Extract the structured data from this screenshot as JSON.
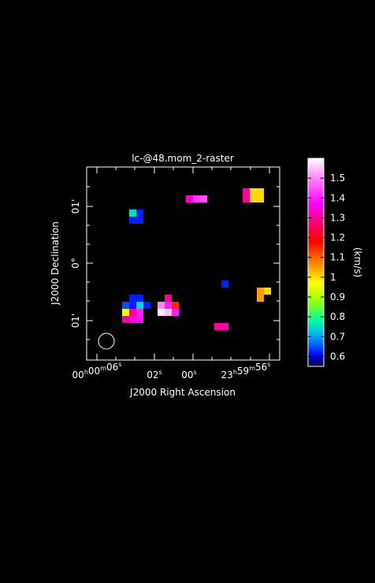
{
  "chart_data": {
    "type": "heatmap",
    "title": "lc-@48.mom_2-raster",
    "xlabel": "J2000 Right Ascension",
    "ylabel": "J2000 Declination",
    "x_ticks": [
      {
        "label": "00h00m06s",
        "parts": [
          [
            "00",
            "h"
          ],
          [
            "00",
            "m"
          ],
          [
            "06",
            "s"
          ]
        ]
      },
      {
        "label": "02s",
        "parts": [
          [
            "02",
            "s"
          ]
        ]
      },
      {
        "label": "00s",
        "parts": [
          [
            "00",
            "s"
          ]
        ]
      },
      {
        "label": "23h59m56s",
        "parts": [
          [
            "23",
            "h"
          ],
          [
            "59",
            "m"
          ],
          [
            "56",
            "s"
          ]
        ]
      }
    ],
    "y_ticks": [
      "01'",
      "0°",
      "01'"
    ],
    "colorbar": {
      "label": "(km/s)",
      "range": [
        0.55,
        1.6
      ],
      "ticks": [
        "1.5",
        "1.4",
        "1.3",
        "1.2",
        "1.1",
        "1",
        "0.9",
        "0.8",
        "0.7",
        "0.6"
      ]
    },
    "beam": "ellipse",
    "pixels": [
      {
        "gx": 6,
        "gy": 6,
        "value": 0.75
      },
      {
        "gx": 7,
        "gy": 6,
        "value": 0.62
      },
      {
        "gx": 6,
        "gy": 7,
        "value": 0.62
      },
      {
        "gx": 7,
        "gy": 7,
        "value": 0.62
      },
      {
        "gx": 14,
        "gy": 4,
        "value": 1.33
      },
      {
        "gx": 15,
        "gy": 4,
        "value": 1.42
      },
      {
        "gx": 16,
        "gy": 4,
        "value": 1.45
      },
      {
        "gx": 22,
        "gy": 3,
        "value": 1.3
      },
      {
        "gx": 23,
        "gy": 3,
        "value": 1.0
      },
      {
        "gx": 24,
        "gy": 3,
        "value": 1.0
      },
      {
        "gx": 22,
        "gy": 4,
        "value": 1.3
      },
      {
        "gx": 23,
        "gy": 4,
        "value": 1.0
      },
      {
        "gx": 24,
        "gy": 4,
        "value": 1.0
      },
      {
        "gx": 19,
        "gy": 16,
        "value": 0.62
      },
      {
        "gx": 24,
        "gy": 17,
        "value": 1.05
      },
      {
        "gx": 25,
        "gy": 17,
        "value": 1.0
      },
      {
        "gx": 24,
        "gy": 18,
        "value": 1.05
      },
      {
        "gx": 6,
        "gy": 18,
        "value": 0.62
      },
      {
        "gx": 7,
        "gy": 18,
        "value": 0.62
      },
      {
        "gx": 5,
        "gy": 19,
        "value": 0.65
      },
      {
        "gx": 6,
        "gy": 19,
        "value": 0.62
      },
      {
        "gx": 7,
        "gy": 19,
        "value": 0.75
      },
      {
        "gx": 8,
        "gy": 19,
        "value": 0.62
      },
      {
        "gx": 5,
        "gy": 20,
        "value": 0.95
      },
      {
        "gx": 6,
        "gy": 20,
        "value": 1.3
      },
      {
        "gx": 7,
        "gy": 20,
        "value": 1.4
      },
      {
        "gx": 5,
        "gy": 21,
        "value": 1.3
      },
      {
        "gx": 6,
        "gy": 21,
        "value": 1.35
      },
      {
        "gx": 7,
        "gy": 21,
        "value": 1.38
      },
      {
        "gx": 11,
        "gy": 18,
        "value": 1.3
      },
      {
        "gx": 10,
        "gy": 19,
        "value": 1.5
      },
      {
        "gx": 11,
        "gy": 19,
        "value": 1.4
      },
      {
        "gx": 12,
        "gy": 19,
        "value": 1.15
      },
      {
        "gx": 10,
        "gy": 20,
        "value": 1.58
      },
      {
        "gx": 11,
        "gy": 20,
        "value": 1.55
      },
      {
        "gx": 12,
        "gy": 20,
        "value": 1.4
      },
      {
        "gx": 18,
        "gy": 22,
        "value": 1.3
      },
      {
        "gx": 19,
        "gy": 22,
        "value": 1.32
      }
    ]
  }
}
